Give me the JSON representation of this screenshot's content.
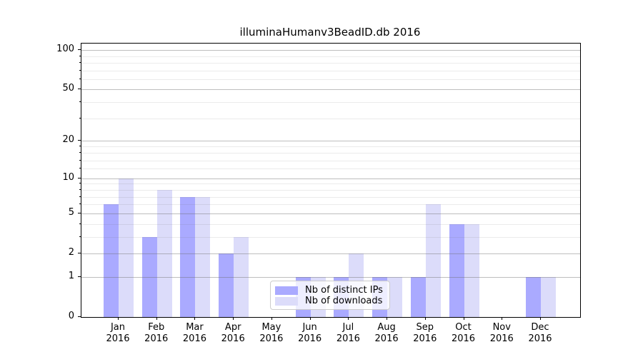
{
  "title": "illuminaHumanv3BeadID.db 2016",
  "chart_data": {
    "type": "bar",
    "title": "illuminaHumanv3BeadID.db 2016",
    "categories": [
      "Jan",
      "Feb",
      "Mar",
      "Apr",
      "May",
      "Jun",
      "Jul",
      "Aug",
      "Sep",
      "Oct",
      "Nov",
      "Dec"
    ],
    "year_label": "2016",
    "series": [
      {
        "name": "Nb of distinct IPs",
        "color": "#aaaaff",
        "values": [
          6,
          3,
          7,
          2,
          0,
          1,
          1,
          1,
          1,
          4,
          0,
          1
        ]
      },
      {
        "name": "Nb of downloads",
        "color": "#dcdcfa",
        "values": [
          10,
          8,
          7,
          3,
          0,
          1,
          2,
          1,
          6,
          4,
          0,
          1
        ]
      }
    ],
    "xlabel": "",
    "ylabel": "",
    "yscale": "log1p",
    "ylim": [
      0,
      112
    ],
    "yticks_major": [
      0,
      1,
      2,
      5,
      10,
      20,
      50,
      100
    ],
    "yticks_minor": [
      3,
      4,
      6,
      7,
      8,
      9,
      12,
      14,
      16,
      18,
      30,
      40,
      60,
      70,
      80,
      90
    ],
    "grid": true,
    "legend_position": "lower center"
  }
}
